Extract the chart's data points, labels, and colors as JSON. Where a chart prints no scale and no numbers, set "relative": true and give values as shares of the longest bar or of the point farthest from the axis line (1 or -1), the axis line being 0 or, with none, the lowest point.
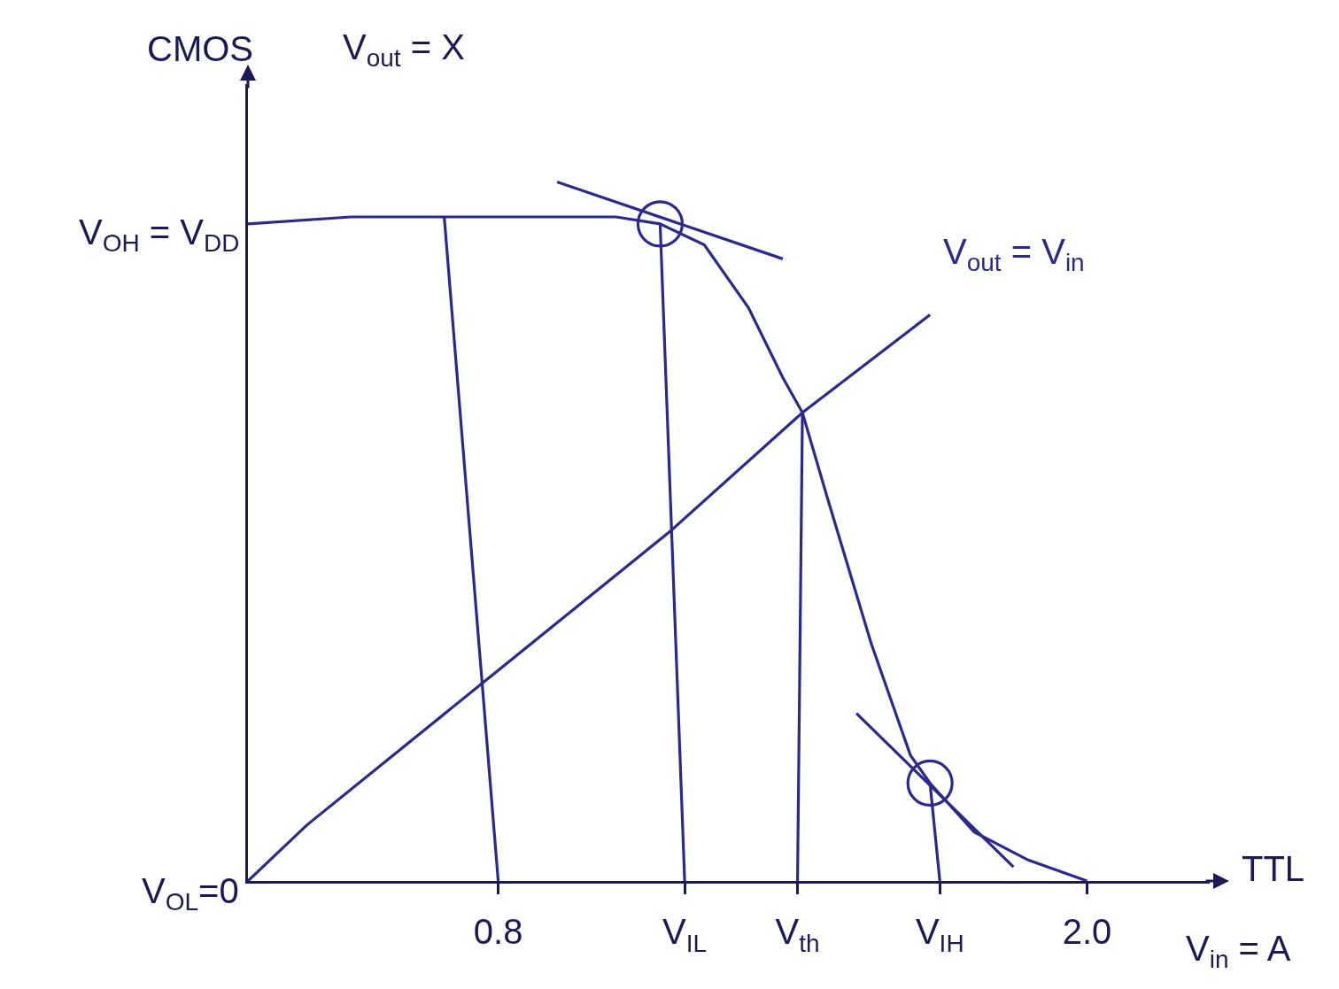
{
  "chart_data": {
    "type": "line",
    "relative": true,
    "xlabel": "V$_{in}$ = A",
    "ylabel": "V$_{out}$ = X",
    "annotations": [
      "CMOS",
      "TTL",
      {
        "text": "V$_{OH}$ = V$_{DD}$",
        "x": 0.29,
        "y": 0.94
      },
      {
        "text": "V$_{OL}$=0",
        "x": 0.29,
        "y": 0
      }
    ],
    "xlim": [
      0.29,
      2.25
    ],
    "xticks": [
      0.8,
      {
        "value": 1.18,
        "label": "V$_{IL}$"
      },
      {
        "value": 1.41,
        "label": "V$_{th}$"
      },
      {
        "value": 1.7,
        "label": "V$_{IH}$"
      },
      {
        "value": 2,
        "label": "2.0"
      }
    ],
    "series": [
      {
        "color": "#2b2a8c",
        "x": [
          0.29,
          0.5,
          0.68,
          0.86,
          1.04,
          1.13,
          1.22,
          1.31,
          1.38,
          1.42,
          1.47,
          1.56,
          1.64,
          1.68,
          1.77,
          1.88,
          2.0
        ],
        "values": [
          0.94,
          0.95,
          0.95,
          0.95,
          0.95,
          0.94,
          0.91,
          0.82,
          0.72,
          0.67,
          0.55,
          0.34,
          0.18,
          0.14,
          0.07,
          0.03,
          0
        ]
      },
      {
        "name": "V$_{out}$ = V$_{in}$",
        "color": "#2b2a8c",
        "x": [
          0.29,
          0.41,
          0.78,
          1.15,
          1.42,
          1.68
        ],
        "values": [
          0,
          0.08,
          0.29,
          0.5,
          0.67,
          0.81
        ]
      },
      {
        "color": "#2b2a8c",
        "x": [
          0.92,
          1.38
        ],
        "values": [
          1.0,
          0.89
        ]
      },
      {
        "color": "#2b2a8c",
        "x": [
          1.53,
          1.85
        ],
        "values": [
          0.24,
          0.02
        ]
      },
      {
        "color": "#2b2a8c",
        "x": [
          0.69,
          0.8
        ],
        "values": [
          0.95,
          0
        ]
      },
      {
        "color": "#2b2a8c",
        "x": [
          1.13,
          1.18
        ],
        "values": [
          0.94,
          0
        ]
      },
      {
        "color": "#2b2a8c",
        "x": [
          1.42,
          1.41
        ],
        "values": [
          0.67,
          0
        ]
      },
      {
        "color": "#2b2a8c",
        "x": [
          1.68,
          1.7
        ],
        "values": [
          0.14,
          0
        ]
      },
      {
        "type": "scatter",
        "marker": "circle",
        "color": "#2b2a8c",
        "x": [
          1.13,
          1.68
        ],
        "values": [
          0.94,
          0.14
        ]
      }
    ],
    "grid": false,
    "legend": false,
    "tick_labels": "x",
    "line_style": "solid"
  }
}
